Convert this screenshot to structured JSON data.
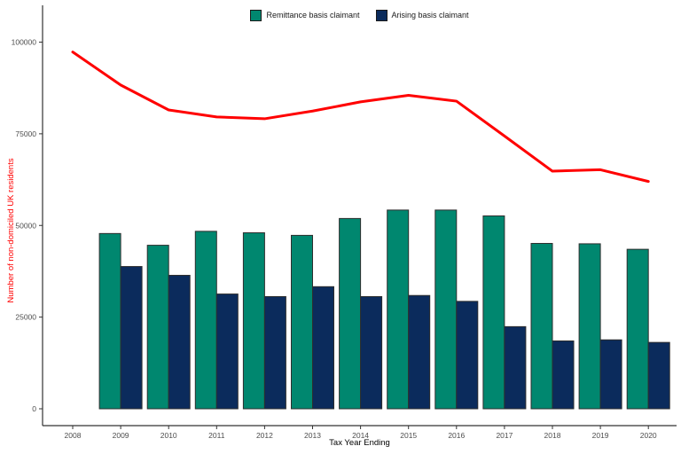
{
  "figure": {
    "background": "#FFFFFF",
    "x_axis_title": "Tax Year Ending",
    "y_axis_title": "Number of non-domiciled UK residents",
    "y_axis_title_color": "#FF0000"
  },
  "legend": {
    "position": "top-center",
    "items": [
      {
        "label": "Remittance basis claimant",
        "color": "#00876F"
      },
      {
        "label": "Arising basis claimant",
        "color": "#0B2B5C"
      }
    ]
  },
  "chart_data": {
    "type": "bar",
    "subtype": "grouped bars with overlaid line",
    "title": "",
    "xlabel": "Tax Year Ending",
    "ylabel": "Number of non-domiciled UK residents",
    "categories": [
      "2008",
      "2009",
      "2010",
      "2011",
      "2012",
      "2013",
      "2014",
      "2015",
      "2016",
      "2017",
      "2018",
      "2019",
      "2020"
    ],
    "ylim": [
      0,
      100000
    ],
    "yticks": [
      0,
      25000,
      50000,
      75000,
      100000
    ],
    "grid": false,
    "legend_position": "top",
    "axis_text_color": "#4D4D4D",
    "series": [
      {
        "name": "Remittance basis claimant",
        "render": "bar",
        "color": "#00876F",
        "values": [
          null,
          47800,
          44600,
          48400,
          48000,
          47300,
          51900,
          54200,
          54200,
          52600,
          45100,
          45000,
          43500
        ]
      },
      {
        "name": "Arising basis claimant",
        "render": "bar",
        "color": "#0B2B5C",
        "values": [
          null,
          38800,
          36400,
          31300,
          30600,
          33300,
          30600,
          30900,
          29300,
          22400,
          18500,
          18800,
          18100
        ]
      },
      {
        "render": "line",
        "color": "#FF0000",
        "values": [
          97300,
          88300,
          81500,
          79600,
          79100,
          81200,
          83700,
          85500,
          83900,
          74400,
          64800,
          65200,
          62000
        ]
      }
    ]
  }
}
